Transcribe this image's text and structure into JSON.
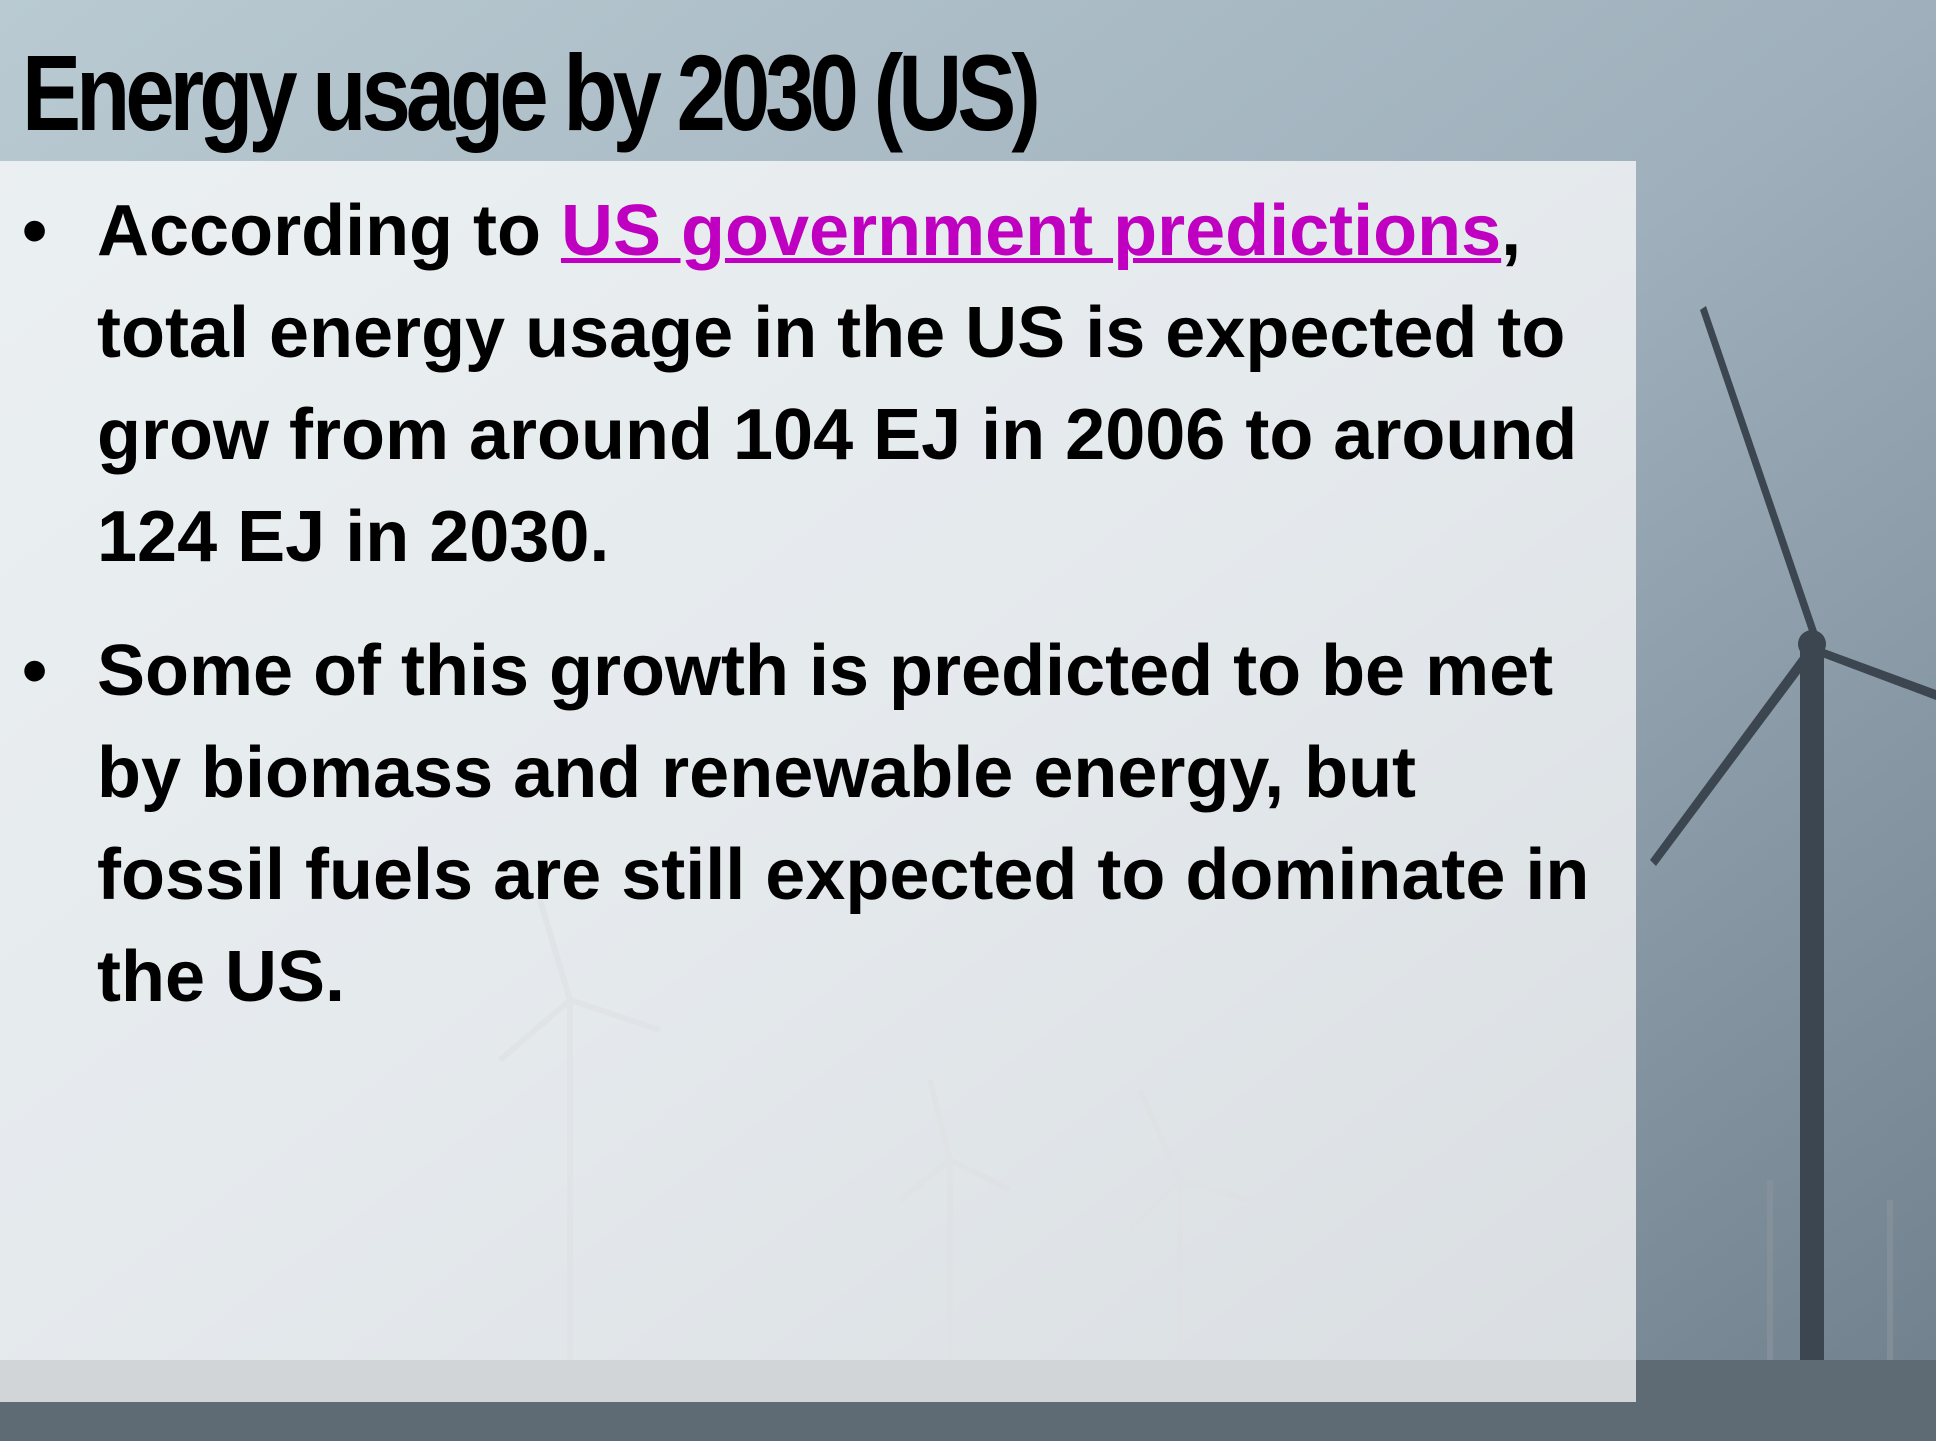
{
  "slide": {
    "title": "Energy usage by 2030 (US)",
    "bullets": [
      {
        "before": "According to ",
        "link": "US government predictions",
        "after": ", total energy usage in the US is expected to grow from around 104 EJ in 2006 to around 124 EJ in 2030."
      },
      {
        "text": "Some of this growth is predicted to be met by biomass and renewable energy, but fossil fuels are still expected to dominate in the US."
      }
    ]
  }
}
